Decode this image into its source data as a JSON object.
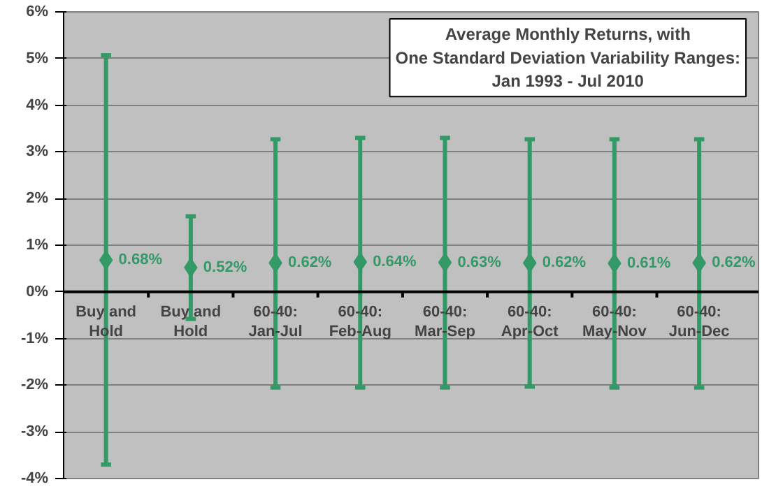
{
  "chart_data": {
    "type": "scatter",
    "title": "Average Monthly Returns, with\nOne Standard Deviation Variability Ranges:\nJan 1993 - Jul 2010",
    "categories": [
      "Buy and\nHold",
      "Buy and\nHold",
      "60-40:\nJan-Jul",
      "60-40:\nFeb-Aug",
      "60-40:\nMar-Sep",
      "60-40:\nApr-Oct",
      "60-40:\nMay-Nov",
      "60-40:\nJun-Dec"
    ],
    "series": [
      {
        "color": "#339966",
        "values": [
          0.68,
          0.52,
          0.62,
          0.64,
          0.63,
          0.62,
          0.61,
          0.62
        ],
        "errors": [
          [
            -3.7,
            5.07
          ],
          [
            -0.58,
            1.62
          ],
          [
            -2.05,
            3.27
          ],
          [
            -2.05,
            3.3
          ],
          [
            -2.05,
            3.3
          ],
          [
            -2.03,
            3.27
          ],
          [
            -2.05,
            3.27
          ],
          [
            -2.05,
            3.27
          ]
        ],
        "value_labels": [
          "0.68%",
          "0.52%",
          "0.62%",
          "0.64%",
          "0.63%",
          "0.62%",
          "0.61%",
          "0.62%"
        ]
      }
    ],
    "marker": "diamond",
    "ylim": [
      -4,
      6
    ],
    "yticks": [
      {
        "value": -4,
        "label": "-4%"
      },
      {
        "value": -3,
        "label": "-3%"
      },
      {
        "value": -2,
        "label": "-2%"
      },
      {
        "value": -1,
        "label": "-1%"
      },
      {
        "value": 0,
        "label": "0%"
      },
      {
        "value": 1,
        "label": "1%"
      },
      {
        "value": 2,
        "label": "2%"
      },
      {
        "value": 3,
        "label": "3%"
      },
      {
        "value": 4,
        "label": "4%"
      },
      {
        "value": 5,
        "label": "5%"
      },
      {
        "value": 6,
        "label": "6%"
      }
    ],
    "grid": "y"
  }
}
